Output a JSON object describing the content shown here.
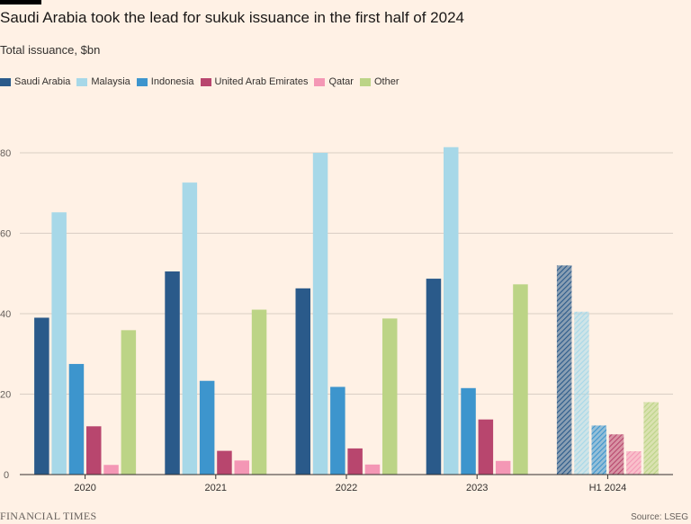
{
  "chart_data": {
    "type": "bar",
    "title": "Saudi Arabia took the lead for sukuk issuance in the first half of 2024",
    "subtitle": "Total issuance, $bn",
    "xlabel": "",
    "ylabel": "Total issuance, $bn",
    "ylim": [
      0,
      80
    ],
    "yticks": [
      0,
      20,
      40,
      60,
      80
    ],
    "ytick_labels": [
      "0",
      "20",
      "40",
      "60",
      "80"
    ],
    "categories": [
      "2020",
      "2021",
      "2022",
      "2023",
      "H1 2024"
    ],
    "hatched_categories": [
      "H1 2024"
    ],
    "grid": true,
    "legend_position": "top-left",
    "series": [
      {
        "name": "Saudi Arabia",
        "color": "#2a5a8a",
        "values": [
          39,
          50.5,
          46.3,
          48.7,
          52
        ]
      },
      {
        "name": "Malaysia",
        "color": "#a7d8e8",
        "values": [
          65.2,
          72.6,
          80,
          81.4,
          40.5
        ]
      },
      {
        "name": "Indonesia",
        "color": "#3d95cd",
        "values": [
          27.5,
          23.3,
          21.8,
          21.5,
          12.2
        ]
      },
      {
        "name": "United Arab Emirates",
        "color": "#b8466e",
        "values": [
          12,
          5.9,
          6.5,
          13.7,
          10
        ]
      },
      {
        "name": "Qatar",
        "color": "#f497b5",
        "values": [
          2.4,
          3.5,
          2.5,
          3.4,
          5.8
        ]
      },
      {
        "name": "Other",
        "color": "#bcd486",
        "values": [
          35.9,
          41,
          38.8,
          47.3,
          18
        ]
      }
    ]
  },
  "footer": {
    "brand": "FINANCIAL TIMES",
    "source": "Source: LSEG"
  }
}
